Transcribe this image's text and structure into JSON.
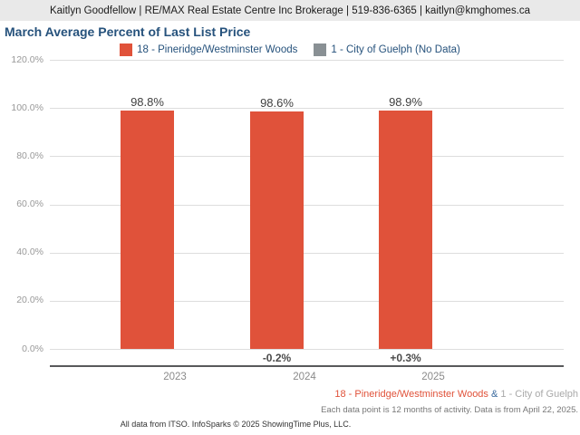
{
  "header": {
    "text": "Kaitlyn Goodfellow | RE/MAX Real Estate Centre Inc Brokerage | 519-836-6365 | kaitlyn@kmghomes.ca"
  },
  "title": "March Average Percent of Last List Price",
  "legend": [
    {
      "name": "series-1-swatch",
      "label": "18 - Pineridge/Westminster Woods",
      "color": "#E0523A"
    },
    {
      "name": "series-2-swatch",
      "label": "1 - City of Guelph (No Data)",
      "color": "#899094"
    }
  ],
  "chart_data": {
    "type": "bar",
    "title": "March Average Percent of Last List Price",
    "categories": [
      "2023",
      "2024",
      "2025"
    ],
    "series": [
      {
        "name": "18 - Pineridge/Westminster Woods",
        "color": "#E0523A",
        "values": [
          98.8,
          98.6,
          98.9
        ],
        "value_labels": [
          "98.8%",
          "98.6%",
          "98.9%"
        ]
      },
      {
        "name": "1 - City of Guelph (No Data)",
        "color": "#899094",
        "values": [
          null,
          null,
          null
        ]
      }
    ],
    "change_labels": [
      "",
      "-0.2%",
      "+0.3%"
    ],
    "ylabel": "",
    "xlabel": "",
    "ylim": [
      0,
      120
    ],
    "y_ticks": [
      "120.0%",
      "100.0%",
      "80.0%",
      "60.0%",
      "40.0%",
      "20.0%",
      "0.0%"
    ],
    "grid": true,
    "legend_position": "top-center"
  },
  "footer": {
    "series1": "18 - Pineridge/Westminster Woods",
    "separator": "&",
    "series2": "1 - City of Guelph",
    "note": "Each data point is 12 months of activity. Data is from April 22, 2025.",
    "credits": "All data from ITSO. InfoSparks © 2025 ShowingTime Plus, LLC."
  },
  "colors": {
    "bar": "#E0523A",
    "no_data_gray": "#899094",
    "title_blue": "#26527C",
    "gridline": "#DDDDDD",
    "axis_line": "#58595B",
    "header_bg": "#E9E9E9"
  }
}
